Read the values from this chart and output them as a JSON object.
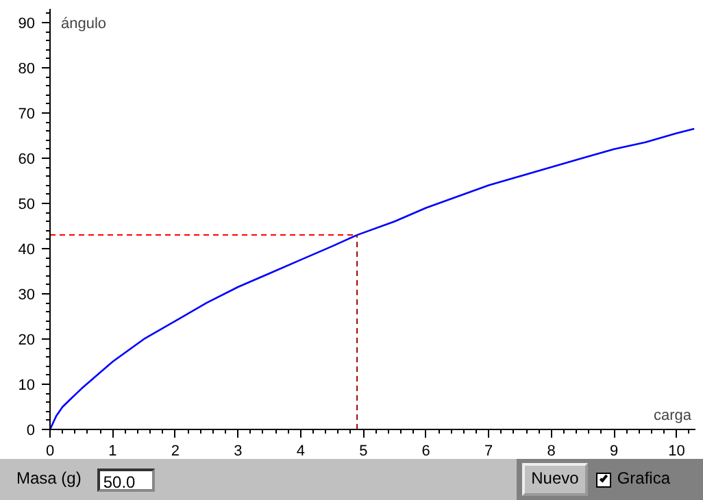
{
  "chart_data": {
    "type": "line",
    "xlabel": "carga",
    "ylabel": "ángulo",
    "x": [
      0,
      0.1,
      0.2,
      0.35,
      0.5,
      0.75,
      1,
      1.5,
      2,
      2.5,
      3,
      3.5,
      4,
      4.5,
      4.9,
      5.5,
      6,
      6.5,
      7,
      7.5,
      8,
      8.5,
      9,
      9.5,
      10,
      10.28
    ],
    "series": [
      {
        "color": "#0000ff",
        "values": [
          0,
          3,
          5,
          7,
          9,
          12,
          15,
          20,
          24,
          28,
          31.5,
          34.5,
          37.5,
          40.5,
          43,
          46,
          49,
          51.5,
          54,
          56,
          58,
          60,
          62,
          63.5,
          65.5,
          66.5
        ]
      }
    ],
    "xlim": [
      0,
      10.3
    ],
    "ylim": [
      0,
      93
    ],
    "xticks": [
      0,
      1,
      2,
      3,
      4,
      5,
      6,
      7,
      8,
      9,
      10
    ],
    "yticks": [
      0,
      10,
      20,
      30,
      40,
      50,
      60,
      70,
      80,
      90
    ],
    "ref_lines": [
      {
        "axis": "y",
        "value": 43,
        "color": "#ff0000",
        "line_style": "dashed"
      },
      {
        "axis": "x",
        "value": 4.9,
        "color": "#990000",
        "line_style": "dashed"
      }
    ],
    "annotations": [
      "Masa (g)",
      "50.0",
      "Nuevo",
      "Grafica"
    ],
    "grid": false,
    "marker": "none",
    "line_style": "solid"
  }
}
